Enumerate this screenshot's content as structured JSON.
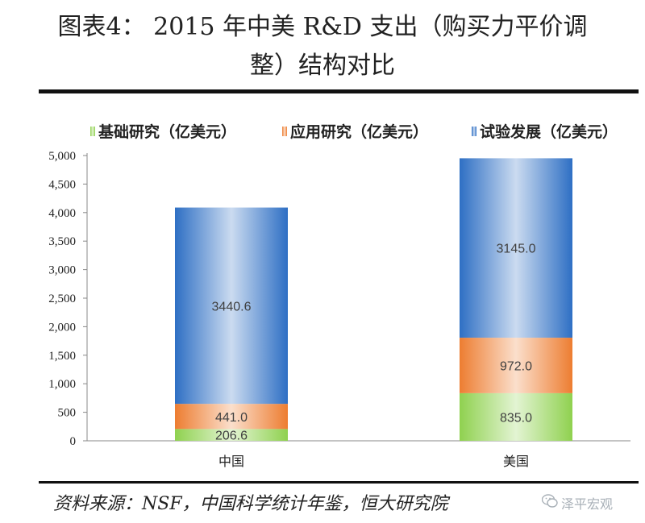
{
  "title": {
    "line1": "图表4： 2015 年中美 R&D 支出（购买力平价调",
    "line2": "整）结构对比"
  },
  "source": "资料来源：NSF，中国科学统计年鉴，恒大研究院",
  "watermark": "泽平宏观",
  "chart_data": {
    "type": "bar",
    "stacked": true,
    "categories": [
      "中国",
      "美国"
    ],
    "series": [
      {
        "name": "基础研究（亿美元）",
        "values": [
          206.6,
          835.0
        ],
        "labels": [
          "206.6",
          "835.0"
        ],
        "color": "#8fd14f"
      },
      {
        "name": "应用研究（亿美元）",
        "values": [
          441.0,
          972.0
        ],
        "labels": [
          "441.0",
          "972.0"
        ],
        "color": "#ed7d31"
      },
      {
        "name": "试验发展（亿美元）",
        "values": [
          3440.6,
          3145.0
        ],
        "labels": [
          "3440.6",
          "3145.0"
        ],
        "color": "#2e6fc4"
      }
    ],
    "ylim": [
      0,
      5000
    ],
    "yticks": [
      0,
      500,
      1000,
      1500,
      2000,
      2500,
      3000,
      3500,
      4000,
      4500,
      5000
    ],
    "ytick_labels": [
      "0",
      "500",
      "1,000",
      "1,500",
      "2,000",
      "2,500",
      "3,000",
      "3,500",
      "4,000",
      "4,500",
      "5,000"
    ],
    "legend_position": "top",
    "grid": false
  }
}
